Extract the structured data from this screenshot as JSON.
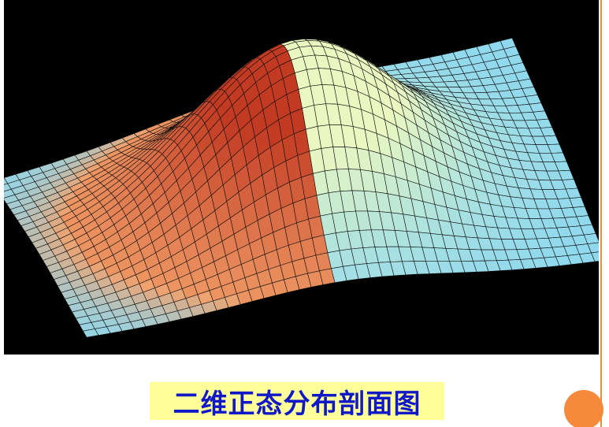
{
  "caption": {
    "text": "二维正态分布剖面图"
  },
  "colors": {
    "panel_background": "#000000",
    "caption_background": "#ffff99",
    "caption_text": "#1018c8",
    "accent_orange": "#f58a3c",
    "surface_cut_dark": "#c23a22",
    "surface_cut_light": "#f2a06a",
    "surface_light": "#eaf7c0",
    "surface_blue": "#8fd8ee",
    "mesh_line": "#101010"
  }
}
